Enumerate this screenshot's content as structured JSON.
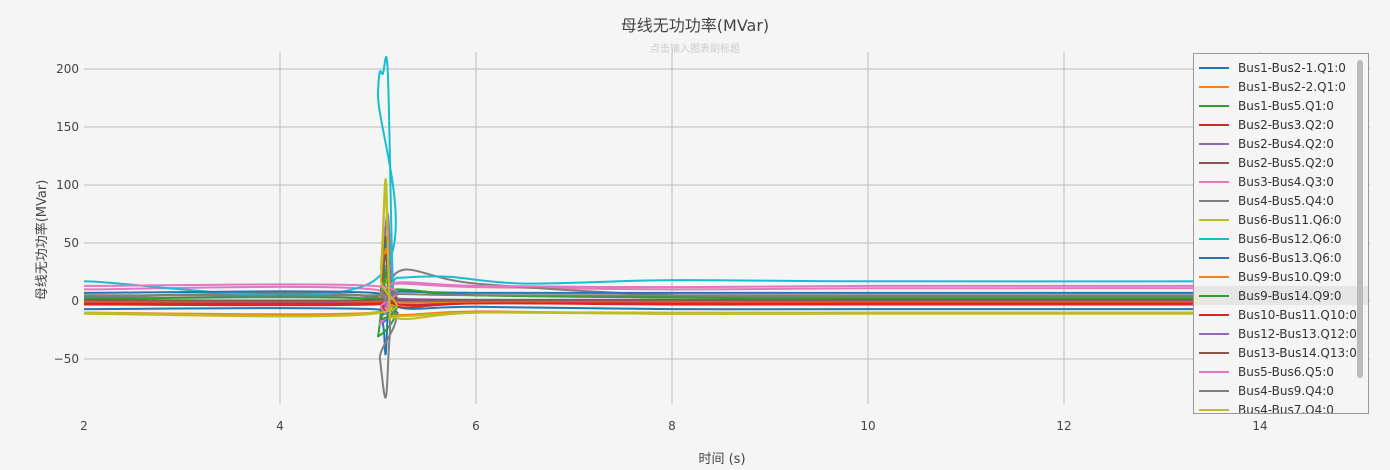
{
  "chart_data": {
    "type": "line",
    "title": "母线无功功率(MVar)",
    "subtitle": "点击输入图表副标题",
    "xlabel": "时间 (s)",
    "ylabel": "母线无功功率(MVar)",
    "xlim": [
      2,
      15.1
    ],
    "ylim": [
      -88,
      210
    ],
    "x_ticks": [
      "2",
      "4",
      "6",
      "8",
      "10",
      "12",
      "14"
    ],
    "y_ticks": [
      "200",
      "150",
      "100",
      "50",
      "0",
      "−50"
    ],
    "grid": true,
    "legend_position": "right",
    "series": [
      {
        "name": "Bus1-Bus2-1.Q1:0",
        "color": "#1f77b4",
        "x": [
          2,
          4.95,
          5.05,
          5.08,
          5.12,
          5.2,
          6,
          8,
          10,
          15
        ],
        "y": [
          -7,
          -7,
          -20,
          -45,
          20,
          -5,
          -5,
          -7,
          -7,
          -7
        ]
      },
      {
        "name": "Bus1-Bus2-2.Q1:0",
        "color": "#ff7f0e",
        "x": [
          2,
          4.95,
          5.03,
          5.07,
          5.12,
          5.2,
          6,
          8,
          10,
          15
        ],
        "y": [
          -10,
          -10,
          10,
          60,
          -5,
          -12,
          -9,
          -11,
          -10,
          -10
        ]
      },
      {
        "name": "Bus1-Bus5.Q1:0",
        "color": "#2ca02c",
        "x": [
          2,
          4.95,
          5.0,
          5.08,
          5.12,
          5.2,
          6,
          8,
          10,
          15
        ],
        "y": [
          4,
          4,
          -30,
          30,
          -8,
          8,
          5,
          4,
          4,
          4
        ]
      },
      {
        "name": "Bus2-Bus3.Q2:0",
        "color": "#d62728",
        "x": [
          2,
          4.95,
          5.03,
          5.08,
          5.12,
          5.2,
          6,
          8,
          10,
          15
        ],
        "y": [
          -3,
          -3,
          5,
          -5,
          10,
          -5,
          -2,
          -3,
          -3,
          -3
        ]
      },
      {
        "name": "Bus2-Bus4.Q2:0",
        "color": "#9467bd",
        "x": [
          2,
          4.95,
          5.03,
          5.1,
          5.14,
          5.2,
          6,
          8,
          10,
          15
        ],
        "y": [
          1,
          1,
          20,
          75,
          5,
          2,
          1,
          1,
          1,
          1
        ]
      },
      {
        "name": "Bus2-Bus5.Q2:0",
        "color": "#8c564b",
        "x": [
          2,
          4.95,
          5.03,
          5.08,
          5.12,
          5.2,
          6,
          8,
          10,
          15
        ],
        "y": [
          0,
          0,
          10,
          55,
          3,
          0,
          0,
          0,
          0,
          0
        ]
      },
      {
        "name": "Bus3-Bus4.Q3:0",
        "color": "#e377c2",
        "x": [
          2,
          4.95,
          5.02,
          5.08,
          5.12,
          5.2,
          6,
          8,
          10,
          15
        ],
        "y": [
          10,
          10,
          -20,
          5,
          10,
          15,
          12,
          10,
          11,
          11
        ]
      },
      {
        "name": "Bus4-Bus5.Q4:0",
        "color": "#7f7f7f",
        "x": [
          2,
          4.95,
          5.02,
          5.08,
          5.12,
          5.2,
          6,
          8,
          10,
          15
        ],
        "y": [
          3,
          3,
          -50,
          -83,
          -30,
          25,
          15,
          5,
          3,
          3
        ]
      },
      {
        "name": "Bus6-Bus11.Q6:0",
        "color": "#bcbd22",
        "x": [
          2,
          4.95,
          5.03,
          5.08,
          5.12,
          5.2,
          6,
          8,
          10,
          15
        ],
        "y": [
          -10,
          -10,
          30,
          105,
          5,
          -15,
          -10,
          -10,
          -10,
          -10
        ]
      },
      {
        "name": "Bus6-Bus12.Q6:0",
        "color": "#17becf",
        "x": [
          2,
          4.95,
          5.0,
          5.05,
          5.1,
          5.15,
          5.2,
          5.7,
          6.5,
          8,
          10,
          15
        ],
        "y": [
          17,
          17,
          180,
          196,
          197,
          20,
          20,
          21,
          15,
          18,
          17,
          17
        ]
      },
      {
        "name": "Bus6-Bus13.Q6:0",
        "color": "#1f77b4",
        "x": [
          2,
          4.95,
          5.03,
          5.08,
          5.12,
          5.2,
          6,
          8,
          10,
          15
        ],
        "y": [
          7,
          7,
          -10,
          50,
          5,
          8,
          7,
          7,
          7,
          7
        ]
      },
      {
        "name": "Bus9-Bus10.Q9:0",
        "color": "#ff7f0e",
        "x": [
          2,
          4.95,
          5.03,
          5.08,
          5.12,
          5.2,
          6,
          8,
          10,
          15
        ],
        "y": [
          -1,
          -1,
          5,
          45,
          -3,
          -2,
          -1,
          -1,
          -1,
          -1
        ]
      },
      {
        "name": "Bus9-Bus14.Q9:0",
        "color": "#2ca02c",
        "x": [
          2,
          4.95,
          5.03,
          5.08,
          5.12,
          5.2,
          6,
          8,
          10,
          15
        ],
        "y": [
          2,
          2,
          -15,
          25,
          3,
          10,
          5,
          3,
          2,
          2
        ]
      },
      {
        "name": "Bus10-Bus11.Q10:0",
        "color": "#d62728",
        "x": [
          2,
          4.95,
          5.03,
          5.08,
          5.12,
          5.2,
          6,
          8,
          10,
          15
        ],
        "y": [
          -2,
          -2,
          0,
          -10,
          8,
          -3,
          -2,
          -2,
          -2,
          -2
        ]
      },
      {
        "name": "Bus12-Bus13.Q12:0",
        "color": "#9467bd",
        "x": [
          2,
          4.95,
          5.03,
          5.08,
          5.12,
          5.2,
          6,
          8,
          10,
          15
        ],
        "y": [
          0,
          0,
          5,
          -5,
          3,
          0,
          0,
          0,
          0,
          0
        ]
      },
      {
        "name": "Bus13-Bus14.Q13:0",
        "color": "#8c564b",
        "x": [
          2,
          4.95,
          5.03,
          5.08,
          5.12,
          5.2,
          6,
          8,
          10,
          15
        ],
        "y": [
          1,
          1,
          10,
          40,
          2,
          1,
          1,
          1,
          1,
          1
        ]
      },
      {
        "name": "Bus5-Bus6.Q5:0",
        "color": "#e377c2",
        "x": [
          2,
          4.95,
          5.03,
          5.08,
          5.12,
          5.2,
          6,
          8,
          10,
          15
        ],
        "y": [
          13,
          13,
          -5,
          -10,
          5,
          16,
          13,
          12,
          13,
          13
        ]
      },
      {
        "name": "Bus4-Bus9.Q4:0",
        "color": "#7f7f7f",
        "x": [
          2,
          4.95,
          5.03,
          5.08,
          5.12,
          5.2,
          6,
          8,
          10,
          15
        ],
        "y": [
          5,
          5,
          10,
          0,
          5,
          6,
          5,
          5,
          5,
          5
        ]
      },
      {
        "name": "Bus4-Bus7.Q4:0",
        "color": "#bcbd22",
        "x": [
          2,
          4.95,
          5.03,
          5.08,
          5.12,
          5.2,
          6,
          8,
          10,
          15
        ],
        "y": [
          -11,
          -11,
          20,
          95,
          -5,
          -13,
          -10,
          -11,
          -11,
          -11
        ]
      }
    ]
  }
}
